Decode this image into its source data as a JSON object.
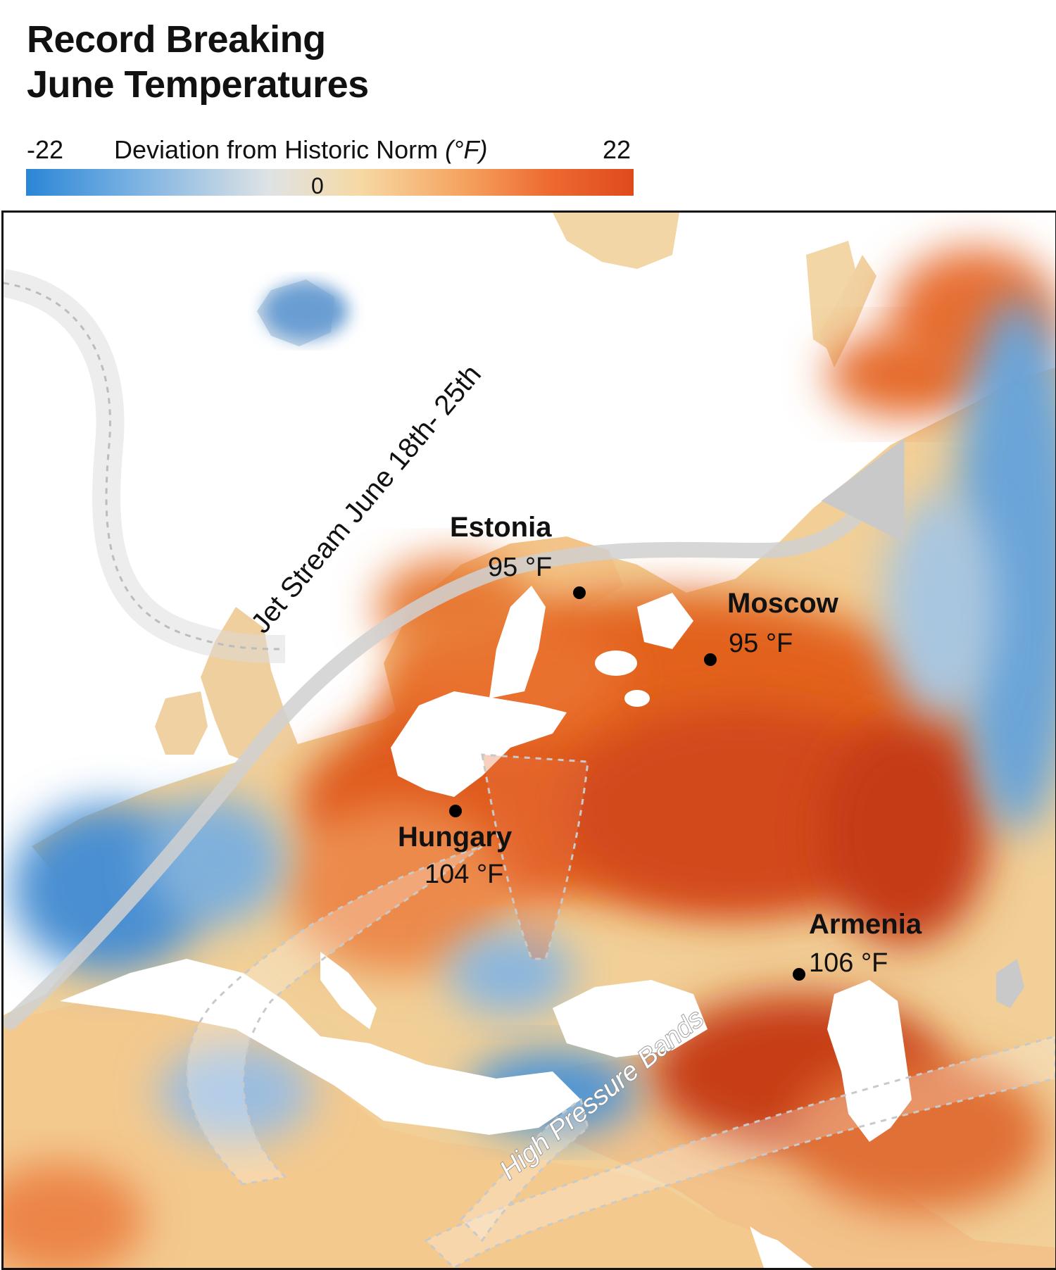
{
  "title": {
    "line1": "Record Breaking",
    "line2": "June Temperatures"
  },
  "legend": {
    "min": "-22",
    "max": "22",
    "mid": "0",
    "label": "Deviation from Historic Norm",
    "unit": "(°F)",
    "colors": [
      "#2a86d6",
      "#dfe3e5",
      "#f6d9a4",
      "#ee6a31",
      "#df4a1c"
    ]
  },
  "annotations": {
    "jet_stream": "Jet Stream June 18th- 25th",
    "high_pressure": "High Pressure Bands"
  },
  "cities": [
    {
      "name": "Estonia",
      "temp": "95 °F"
    },
    {
      "name": "Moscow",
      "temp": "95 °F"
    },
    {
      "name": "Hungary",
      "temp": "104 °F"
    },
    {
      "name": "Armenia",
      "temp": "106 °F"
    }
  ],
  "colors": {
    "water": "#ffffff",
    "warm": "#f3c98e",
    "hot": "#ec7b3e",
    "very_hot": "#d8461a",
    "extreme": "#b7300e",
    "cool": "#8fb8e0",
    "cold": "#3d8ad3"
  }
}
